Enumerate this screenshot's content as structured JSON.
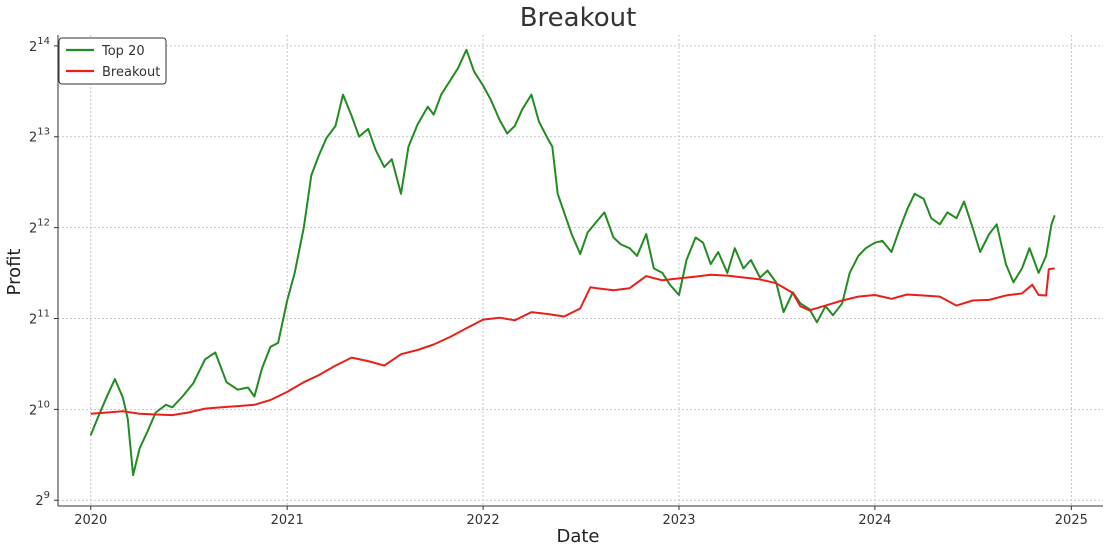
{
  "chart_data": {
    "type": "line",
    "title": "Breakout",
    "xlabel": "Date",
    "ylabel": "Profit",
    "yscale": "log2",
    "xlim": [
      "2019-11-01",
      "2025-03-01"
    ],
    "ylim": [
      490,
      17800
    ],
    "x_ticks": [
      "2020",
      "2021",
      "2022",
      "2023",
      "2024",
      "2025"
    ],
    "y_ticks": [
      {
        "base": "2",
        "exp": "9",
        "value": 512
      },
      {
        "base": "2",
        "exp": "10",
        "value": 1024
      },
      {
        "base": "2",
        "exp": "11",
        "value": 2048
      },
      {
        "base": "2",
        "exp": "12",
        "value": 4096
      },
      {
        "base": "2",
        "exp": "13",
        "value": 8192
      },
      {
        "base": "2",
        "exp": "14",
        "value": 16384
      }
    ],
    "grid": true,
    "legend_position": "top-left",
    "series": [
      {
        "name": "Top 20",
        "color": "#228B22",
        "points": [
          [
            "2020-01-01",
            840
          ],
          [
            "2020-01-15",
            970
          ],
          [
            "2020-02-01",
            1140
          ],
          [
            "2020-02-15",
            1290
          ],
          [
            "2020-03-01",
            1120
          ],
          [
            "2020-03-10",
            950
          ],
          [
            "2020-03-20",
            620
          ],
          [
            "2020-04-01",
            760
          ],
          [
            "2020-04-15",
            860
          ],
          [
            "2020-05-01",
            1000
          ],
          [
            "2020-05-20",
            1060
          ],
          [
            "2020-06-01",
            1040
          ],
          [
            "2020-06-20",
            1130
          ],
          [
            "2020-07-10",
            1250
          ],
          [
            "2020-08-01",
            1500
          ],
          [
            "2020-08-20",
            1580
          ],
          [
            "2020-09-10",
            1260
          ],
          [
            "2020-10-01",
            1190
          ],
          [
            "2020-10-20",
            1210
          ],
          [
            "2020-11-01",
            1130
          ],
          [
            "2020-11-15",
            1400
          ],
          [
            "2020-12-01",
            1650
          ],
          [
            "2020-12-15",
            1700
          ],
          [
            "2021-01-01",
            2350
          ],
          [
            "2021-01-15",
            2900
          ],
          [
            "2021-02-01",
            4100
          ],
          [
            "2021-02-15",
            6100
          ],
          [
            "2021-03-01",
            7100
          ],
          [
            "2021-03-15",
            8100
          ],
          [
            "2021-04-01",
            8900
          ],
          [
            "2021-04-15",
            11300
          ],
          [
            "2021-05-01",
            9600
          ],
          [
            "2021-05-15",
            8200
          ],
          [
            "2021-06-01",
            8700
          ],
          [
            "2021-06-15",
            7400
          ],
          [
            "2021-07-01",
            6500
          ],
          [
            "2021-07-15",
            6900
          ],
          [
            "2021-08-01",
            5300
          ],
          [
            "2021-08-15",
            7600
          ],
          [
            "2021-09-01",
            9000
          ],
          [
            "2021-09-20",
            10300
          ],
          [
            "2021-10-01",
            9700
          ],
          [
            "2021-10-15",
            11300
          ],
          [
            "2021-11-01",
            12600
          ],
          [
            "2021-11-15",
            13800
          ],
          [
            "2021-12-01",
            15900
          ],
          [
            "2021-12-15",
            13500
          ],
          [
            "2022-01-01",
            12100
          ],
          [
            "2022-01-15",
            10900
          ],
          [
            "2022-02-01",
            9300
          ],
          [
            "2022-02-15",
            8400
          ],
          [
            "2022-03-01",
            8900
          ],
          [
            "2022-03-15",
            10100
          ],
          [
            "2022-04-01",
            11300
          ],
          [
            "2022-04-15",
            9200
          ],
          [
            "2022-05-01",
            8100
          ],
          [
            "2022-05-10",
            7600
          ],
          [
            "2022-05-20",
            5300
          ],
          [
            "2022-06-01",
            4600
          ],
          [
            "2022-06-15",
            3900
          ],
          [
            "2022-07-01",
            3350
          ],
          [
            "2022-07-15",
            3950
          ],
          [
            "2022-08-01",
            4300
          ],
          [
            "2022-08-15",
            4600
          ],
          [
            "2022-09-01",
            3800
          ],
          [
            "2022-09-15",
            3600
          ],
          [
            "2022-10-01",
            3500
          ],
          [
            "2022-10-15",
            3300
          ],
          [
            "2022-11-01",
            3900
          ],
          [
            "2022-11-15",
            3000
          ],
          [
            "2022-12-01",
            2900
          ],
          [
            "2022-12-15",
            2650
          ],
          [
            "2023-01-01",
            2450
          ],
          [
            "2023-01-15",
            3200
          ],
          [
            "2023-02-01",
            3800
          ],
          [
            "2023-02-15",
            3650
          ],
          [
            "2023-03-01",
            3100
          ],
          [
            "2023-03-15",
            3400
          ],
          [
            "2023-04-01",
            2900
          ],
          [
            "2023-04-15",
            3500
          ],
          [
            "2023-05-01",
            3000
          ],
          [
            "2023-05-15",
            3200
          ],
          [
            "2023-06-01",
            2800
          ],
          [
            "2023-06-15",
            2950
          ],
          [
            "2023-07-01",
            2700
          ],
          [
            "2023-07-15",
            2150
          ],
          [
            "2023-08-01",
            2500
          ],
          [
            "2023-08-15",
            2300
          ],
          [
            "2023-09-01",
            2200
          ],
          [
            "2023-09-15",
            1990
          ],
          [
            "2023-10-01",
            2250
          ],
          [
            "2023-10-15",
            2100
          ],
          [
            "2023-11-01",
            2300
          ],
          [
            "2023-11-15",
            2900
          ],
          [
            "2023-12-01",
            3300
          ],
          [
            "2023-12-15",
            3500
          ],
          [
            "2024-01-01",
            3650
          ],
          [
            "2024-01-15",
            3700
          ],
          [
            "2024-02-01",
            3400
          ],
          [
            "2024-02-15",
            4000
          ],
          [
            "2024-03-01",
            4700
          ],
          [
            "2024-03-15",
            5300
          ],
          [
            "2024-04-01",
            5100
          ],
          [
            "2024-04-15",
            4400
          ],
          [
            "2024-05-01",
            4200
          ],
          [
            "2024-05-15",
            4600
          ],
          [
            "2024-06-01",
            4400
          ],
          [
            "2024-06-15",
            5000
          ],
          [
            "2024-07-01",
            4100
          ],
          [
            "2024-07-15",
            3400
          ],
          [
            "2024-08-01",
            3900
          ],
          [
            "2024-08-15",
            4200
          ],
          [
            "2024-09-01",
            3100
          ],
          [
            "2024-09-15",
            2700
          ],
          [
            "2024-10-01",
            3000
          ],
          [
            "2024-10-15",
            3500
          ],
          [
            "2024-11-01",
            2900
          ],
          [
            "2024-11-15",
            3300
          ],
          [
            "2024-11-25",
            4200
          ],
          [
            "2024-12-01",
            4500
          ]
        ]
      },
      {
        "name": "Breakout",
        "color": "#E8201A",
        "points": [
          [
            "2020-01-01",
            990
          ],
          [
            "2020-02-01",
            1000
          ],
          [
            "2020-03-01",
            1010
          ],
          [
            "2020-04-01",
            990
          ],
          [
            "2020-05-01",
            985
          ],
          [
            "2020-06-01",
            980
          ],
          [
            "2020-07-01",
            1000
          ],
          [
            "2020-08-01",
            1030
          ],
          [
            "2020-09-01",
            1040
          ],
          [
            "2020-10-01",
            1050
          ],
          [
            "2020-11-01",
            1060
          ],
          [
            "2020-12-01",
            1100
          ],
          [
            "2021-01-01",
            1170
          ],
          [
            "2021-02-01",
            1260
          ],
          [
            "2021-03-01",
            1330
          ],
          [
            "2021-04-01",
            1430
          ],
          [
            "2021-05-01",
            1520
          ],
          [
            "2021-06-01",
            1480
          ],
          [
            "2021-07-01",
            1430
          ],
          [
            "2021-08-01",
            1560
          ],
          [
            "2021-09-01",
            1610
          ],
          [
            "2021-10-01",
            1680
          ],
          [
            "2021-11-01",
            1780
          ],
          [
            "2021-12-01",
            1900
          ],
          [
            "2022-01-01",
            2030
          ],
          [
            "2022-02-01",
            2060
          ],
          [
            "2022-03-01",
            2020
          ],
          [
            "2022-04-01",
            2150
          ],
          [
            "2022-05-01",
            2120
          ],
          [
            "2022-06-01",
            2080
          ],
          [
            "2022-07-01",
            2210
          ],
          [
            "2022-07-20",
            2600
          ],
          [
            "2022-08-01",
            2580
          ],
          [
            "2022-09-01",
            2540
          ],
          [
            "2022-10-01",
            2580
          ],
          [
            "2022-11-01",
            2830
          ],
          [
            "2022-12-01",
            2740
          ],
          [
            "2023-01-01",
            2780
          ],
          [
            "2023-02-01",
            2820
          ],
          [
            "2023-03-01",
            2860
          ],
          [
            "2023-04-01",
            2840
          ],
          [
            "2023-05-01",
            2800
          ],
          [
            "2023-06-01",
            2760
          ],
          [
            "2023-07-01",
            2680
          ],
          [
            "2023-08-01",
            2490
          ],
          [
            "2023-08-15",
            2250
          ],
          [
            "2023-09-01",
            2180
          ],
          [
            "2023-10-01",
            2260
          ],
          [
            "2023-11-01",
            2350
          ],
          [
            "2023-12-01",
            2420
          ],
          [
            "2024-01-01",
            2450
          ],
          [
            "2024-02-01",
            2380
          ],
          [
            "2024-03-01",
            2460
          ],
          [
            "2024-04-01",
            2440
          ],
          [
            "2024-05-01",
            2420
          ],
          [
            "2024-06-01",
            2260
          ],
          [
            "2024-07-01",
            2350
          ],
          [
            "2024-08-01",
            2360
          ],
          [
            "2024-09-01",
            2440
          ],
          [
            "2024-10-01",
            2480
          ],
          [
            "2024-10-20",
            2650
          ],
          [
            "2024-11-01",
            2450
          ],
          [
            "2024-11-15",
            2440
          ],
          [
            "2024-11-20",
            2980
          ],
          [
            "2024-12-01",
            3000
          ]
        ]
      }
    ]
  }
}
